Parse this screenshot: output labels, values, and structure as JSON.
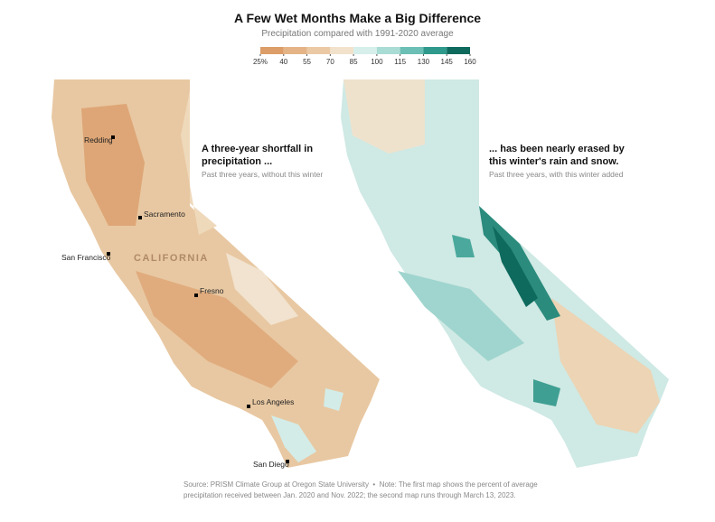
{
  "header": {
    "title": "A Few Wet Months Make a Big Difference",
    "subtitle": "Precipitation compared with 1991-2020 average"
  },
  "legend": {
    "colors": [
      "#dc9d68",
      "#e4b487",
      "#ebc9a5",
      "#f2e2cc",
      "#d6efeb",
      "#a8dcd5",
      "#6bbfb4",
      "#2f9a8b",
      "#0d6a5d"
    ],
    "ticks": [
      {
        "value": 25,
        "label": "25%"
      },
      40,
      55,
      70,
      85,
      100,
      115,
      130,
      145,
      160
    ]
  },
  "maps": [
    {
      "annotation": "A three-year shortfall in precipitation ...",
      "caption": "Past three years, without this winter",
      "region_label": "CALIFORNIA",
      "cities": [
        "Redding",
        "Sacramento",
        "San Francisco",
        "Fresno",
        "Los Angeles",
        "San Diego"
      ]
    },
    {
      "annotation": "... has been nearly erased by this winter's rain and snow.",
      "caption": "Past three years, with this winter added"
    }
  ],
  "footer": {
    "source": "Source: PRISM Climate Group at Oregon State University",
    "note": "Note: The first map shows the percent of average precipitation received between Jan. 2020 and Nov. 2022; the second map runs through March 13, 2023."
  }
}
